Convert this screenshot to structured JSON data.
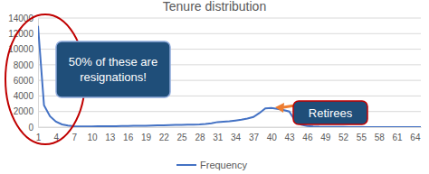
{
  "chart_data": {
    "type": "line",
    "title": "Tenure distribution",
    "x": [
      1,
      2,
      3,
      4,
      5,
      6,
      7,
      8,
      9,
      10,
      11,
      12,
      13,
      14,
      15,
      16,
      17,
      18,
      19,
      20,
      21,
      22,
      23,
      24,
      25,
      26,
      27,
      28,
      29,
      30,
      31,
      32,
      33,
      34,
      35,
      36,
      37,
      38,
      39,
      40,
      41,
      42,
      43,
      44,
      45,
      46,
      47,
      48,
      49,
      50,
      51,
      52,
      53,
      54,
      55,
      56,
      57,
      58,
      59,
      60,
      61,
      62,
      63,
      64,
      65
    ],
    "series": [
      {
        "name": "Frequency",
        "color": "#4472c4",
        "values": [
          13000,
          2800,
          1400,
          700,
          350,
          200,
          120,
          100,
          100,
          100,
          110,
          110,
          120,
          130,
          140,
          150,
          160,
          170,
          180,
          200,
          220,
          240,
          260,
          280,
          300,
          310,
          330,
          350,
          400,
          500,
          650,
          700,
          750,
          850,
          950,
          1100,
          1300,
          1800,
          2400,
          2450,
          2350,
          2200,
          2000,
          800,
          300,
          150,
          80,
          50,
          40,
          30,
          20,
          15,
          10,
          10,
          5,
          5,
          5,
          0,
          0,
          0,
          0,
          0,
          0,
          0,
          0
        ]
      }
    ],
    "xlim": [
      1,
      65
    ],
    "xticks": [
      1,
      4,
      7,
      10,
      13,
      16,
      19,
      22,
      25,
      28,
      31,
      34,
      37,
      40,
      43,
      46,
      49,
      52,
      55,
      58,
      61,
      64
    ],
    "ylim": [
      0,
      14000
    ],
    "yticks": [
      0,
      2000,
      4000,
      6000,
      8000,
      10000,
      12000,
      14000
    ],
    "grid": true,
    "legend": "bottom",
    "annotations": [
      {
        "text": "50% of these are resignations!"
      },
      {
        "text": "Retirees"
      }
    ]
  }
}
